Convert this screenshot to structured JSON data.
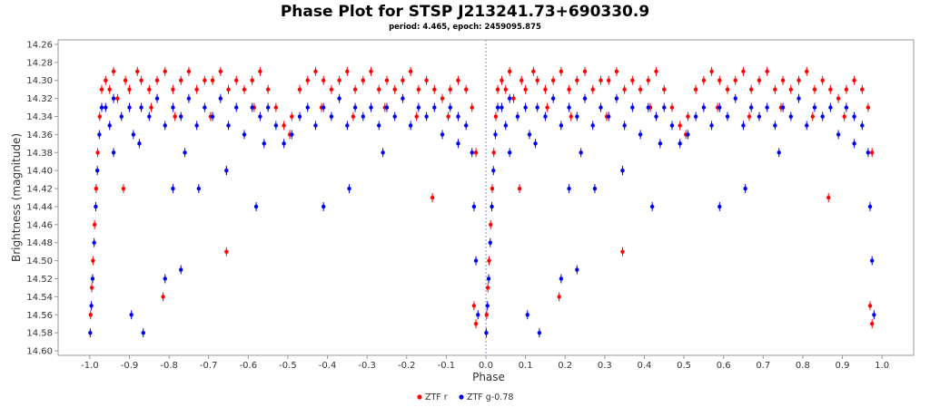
{
  "chart_data": {
    "type": "scatter",
    "title": "Phase Plot for STSP J213241.73+690330.9",
    "subtitle": "period: 4.465, epoch: 2459095.875",
    "xlabel": "Phase",
    "ylabel": "Brightness (magnitude)",
    "xlim": [
      -1.08,
      1.08
    ],
    "ylim": [
      14.605,
      14.255
    ],
    "y_inverted": true,
    "x_ticks": [
      -1.0,
      -0.9,
      -0.8,
      -0.7,
      -0.6,
      -0.5,
      -0.4,
      -0.3,
      -0.2,
      -0.1,
      0.0,
      0.1,
      0.2,
      0.3,
      0.4,
      0.5,
      0.6,
      0.7,
      0.8,
      0.9,
      1.0
    ],
    "x_tick_labels": [
      "-1.0",
      "-0.9",
      "-0.8",
      "-0.7",
      "-0.6",
      "-0.5",
      "-0.4",
      "-0.3",
      "-0.2",
      "-0.1",
      "0.0",
      "0.1",
      "0.2",
      "0.3",
      "0.4",
      "0.5",
      "0.6",
      "0.7",
      "0.8",
      "0.9",
      "1.0"
    ],
    "y_ticks": [
      14.26,
      14.28,
      14.3,
      14.32,
      14.34,
      14.36,
      14.38,
      14.4,
      14.42,
      14.44,
      14.46,
      14.48,
      14.5,
      14.52,
      14.54,
      14.56,
      14.58,
      14.6
    ],
    "y_tick_labels": [
      "14.26",
      "14.28",
      "14.30",
      "14.32",
      "14.34",
      "14.36",
      "14.38",
      "14.40",
      "14.42",
      "14.44",
      "14.46",
      "14.48",
      "14.50",
      "14.52",
      "14.54",
      "14.56",
      "14.58",
      "14.60"
    ],
    "reference_line_x": 0.0,
    "legend_position": "bottom-center",
    "series": [
      {
        "name": "ZTF r",
        "color": "#ff0000",
        "points": [
          [
            0.002,
            14.56
          ],
          [
            0.005,
            14.53
          ],
          [
            0.008,
            14.5
          ],
          [
            0.012,
            14.46
          ],
          [
            0.016,
            14.42
          ],
          [
            0.02,
            14.38
          ],
          [
            0.025,
            14.34
          ],
          [
            0.03,
            14.31
          ],
          [
            0.04,
            14.3
          ],
          [
            0.05,
            14.31
          ],
          [
            0.06,
            14.29
          ],
          [
            0.07,
            14.32
          ],
          [
            0.09,
            14.3
          ],
          [
            0.1,
            14.31
          ],
          [
            0.12,
            14.29
          ],
          [
            0.13,
            14.3
          ],
          [
            0.15,
            14.31
          ],
          [
            0.17,
            14.3
          ],
          [
            0.19,
            14.29
          ],
          [
            0.21,
            14.31
          ],
          [
            0.23,
            14.3
          ],
          [
            0.25,
            14.29
          ],
          [
            0.27,
            14.31
          ],
          [
            0.29,
            14.3
          ],
          [
            0.31,
            14.3
          ],
          [
            0.33,
            14.29
          ],
          [
            0.35,
            14.31
          ],
          [
            0.37,
            14.3
          ],
          [
            0.39,
            14.31
          ],
          [
            0.41,
            14.3
          ],
          [
            0.43,
            14.29
          ],
          [
            0.45,
            14.31
          ],
          [
            0.47,
            14.33
          ],
          [
            0.49,
            14.35
          ],
          [
            0.51,
            14.34
          ],
          [
            0.53,
            14.31
          ],
          [
            0.55,
            14.3
          ],
          [
            0.57,
            14.29
          ],
          [
            0.59,
            14.3
          ],
          [
            0.61,
            14.31
          ],
          [
            0.63,
            14.3
          ],
          [
            0.65,
            14.29
          ],
          [
            0.67,
            14.31
          ],
          [
            0.69,
            14.3
          ],
          [
            0.71,
            14.29
          ],
          [
            0.73,
            14.31
          ],
          [
            0.75,
            14.3
          ],
          [
            0.77,
            14.31
          ],
          [
            0.79,
            14.3
          ],
          [
            0.81,
            14.29
          ],
          [
            0.83,
            14.31
          ],
          [
            0.85,
            14.3
          ],
          [
            0.87,
            14.31
          ],
          [
            0.89,
            14.32
          ],
          [
            0.91,
            14.31
          ],
          [
            0.93,
            14.3
          ],
          [
            0.95,
            14.31
          ],
          [
            0.965,
            14.33
          ],
          [
            0.975,
            14.38
          ],
          [
            0.085,
            14.42
          ],
          [
            0.185,
            14.54
          ],
          [
            0.345,
            14.49
          ],
          [
            0.345,
            14.4
          ],
          [
            0.865,
            14.43
          ],
          [
            0.97,
            14.55
          ],
          [
            0.975,
            14.57
          ],
          [
            0.155,
            14.33
          ],
          [
            0.215,
            14.34
          ],
          [
            0.305,
            14.34
          ],
          [
            0.415,
            14.33
          ],
          [
            0.505,
            14.36
          ],
          [
            0.585,
            14.33
          ],
          [
            0.665,
            14.34
          ],
          [
            0.745,
            14.33
          ],
          [
            0.825,
            14.34
          ],
          [
            0.905,
            14.34
          ]
        ]
      },
      {
        "name": "ZTF g-0.78",
        "color": "#0000ee",
        "points": [
          [
            0.001,
            14.58
          ],
          [
            0.004,
            14.55
          ],
          [
            0.007,
            14.52
          ],
          [
            0.011,
            14.48
          ],
          [
            0.015,
            14.44
          ],
          [
            0.019,
            14.4
          ],
          [
            0.024,
            14.36
          ],
          [
            0.03,
            14.33
          ],
          [
            0.04,
            14.33
          ],
          [
            0.05,
            14.35
          ],
          [
            0.06,
            14.32
          ],
          [
            0.08,
            14.34
          ],
          [
            0.1,
            14.33
          ],
          [
            0.11,
            14.36
          ],
          [
            0.13,
            14.33
          ],
          [
            0.15,
            14.34
          ],
          [
            0.17,
            14.32
          ],
          [
            0.19,
            14.35
          ],
          [
            0.21,
            14.33
          ],
          [
            0.23,
            14.34
          ],
          [
            0.25,
            14.32
          ],
          [
            0.27,
            14.35
          ],
          [
            0.29,
            14.33
          ],
          [
            0.31,
            14.34
          ],
          [
            0.33,
            14.32
          ],
          [
            0.35,
            14.35
          ],
          [
            0.37,
            14.33
          ],
          [
            0.39,
            14.36
          ],
          [
            0.41,
            14.33
          ],
          [
            0.43,
            14.34
          ],
          [
            0.45,
            14.33
          ],
          [
            0.47,
            14.35
          ],
          [
            0.49,
            14.37
          ],
          [
            0.51,
            14.36
          ],
          [
            0.53,
            14.34
          ],
          [
            0.55,
            14.33
          ],
          [
            0.57,
            14.35
          ],
          [
            0.59,
            14.33
          ],
          [
            0.61,
            14.34
          ],
          [
            0.63,
            14.32
          ],
          [
            0.65,
            14.35
          ],
          [
            0.67,
            14.33
          ],
          [
            0.69,
            14.34
          ],
          [
            0.71,
            14.33
          ],
          [
            0.73,
            14.35
          ],
          [
            0.75,
            14.33
          ],
          [
            0.77,
            14.34
          ],
          [
            0.79,
            14.32
          ],
          [
            0.81,
            14.35
          ],
          [
            0.83,
            14.33
          ],
          [
            0.85,
            14.34
          ],
          [
            0.87,
            14.33
          ],
          [
            0.89,
            14.36
          ],
          [
            0.91,
            14.33
          ],
          [
            0.93,
            14.34
          ],
          [
            0.95,
            14.35
          ],
          [
            0.965,
            14.38
          ],
          [
            0.97,
            14.44
          ],
          [
            0.975,
            14.5
          ],
          [
            0.98,
            14.56
          ],
          [
            0.105,
            14.56
          ],
          [
            0.135,
            14.58
          ],
          [
            0.19,
            14.52
          ],
          [
            0.21,
            14.42
          ],
          [
            0.23,
            14.51
          ],
          [
            0.275,
            14.42
          ],
          [
            0.345,
            14.4
          ],
          [
            0.42,
            14.44
          ],
          [
            0.59,
            14.44
          ],
          [
            0.655,
            14.42
          ],
          [
            0.06,
            14.38
          ],
          [
            0.125,
            14.37
          ],
          [
            0.24,
            14.38
          ],
          [
            0.44,
            14.37
          ],
          [
            0.74,
            14.38
          ],
          [
            0.93,
            14.37
          ]
        ]
      }
    ]
  }
}
